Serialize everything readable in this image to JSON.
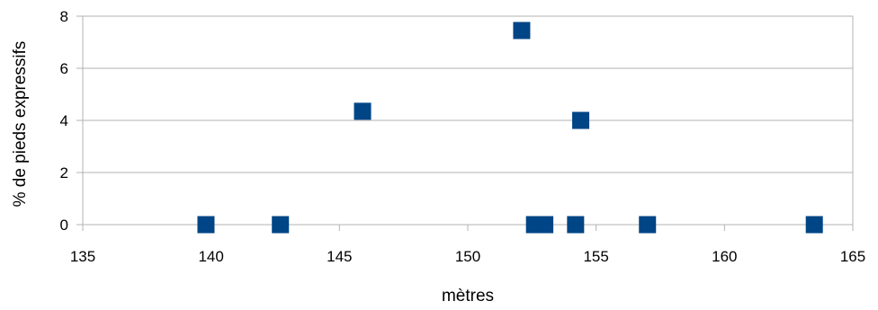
{
  "chart_data": {
    "type": "scatter",
    "title": "",
    "xlabel": "mètres",
    "ylabel": "% de pieds expressifs",
    "xlim": [
      135,
      165
    ],
    "ylim": [
      0,
      8
    ],
    "x_ticks": [
      135,
      140,
      145,
      150,
      155,
      160,
      165
    ],
    "y_ticks": [
      0,
      2,
      4,
      6,
      8
    ],
    "grid": "horizontal",
    "legend": "none",
    "marker_color": "#004586",
    "marker": "square",
    "series": [
      {
        "points": [
          {
            "x": 139.8,
            "y": 0
          },
          {
            "x": 142.7,
            "y": 0
          },
          {
            "x": 145.9,
            "y": 4.35
          },
          {
            "x": 152.1,
            "y": 7.45
          },
          {
            "x": 152.6,
            "y": 0
          },
          {
            "x": 153.0,
            "y": 0
          },
          {
            "x": 154.2,
            "y": 0
          },
          {
            "x": 154.4,
            "y": 4.0
          },
          {
            "x": 157.0,
            "y": 0
          },
          {
            "x": 163.5,
            "y": 0
          }
        ]
      }
    ]
  }
}
